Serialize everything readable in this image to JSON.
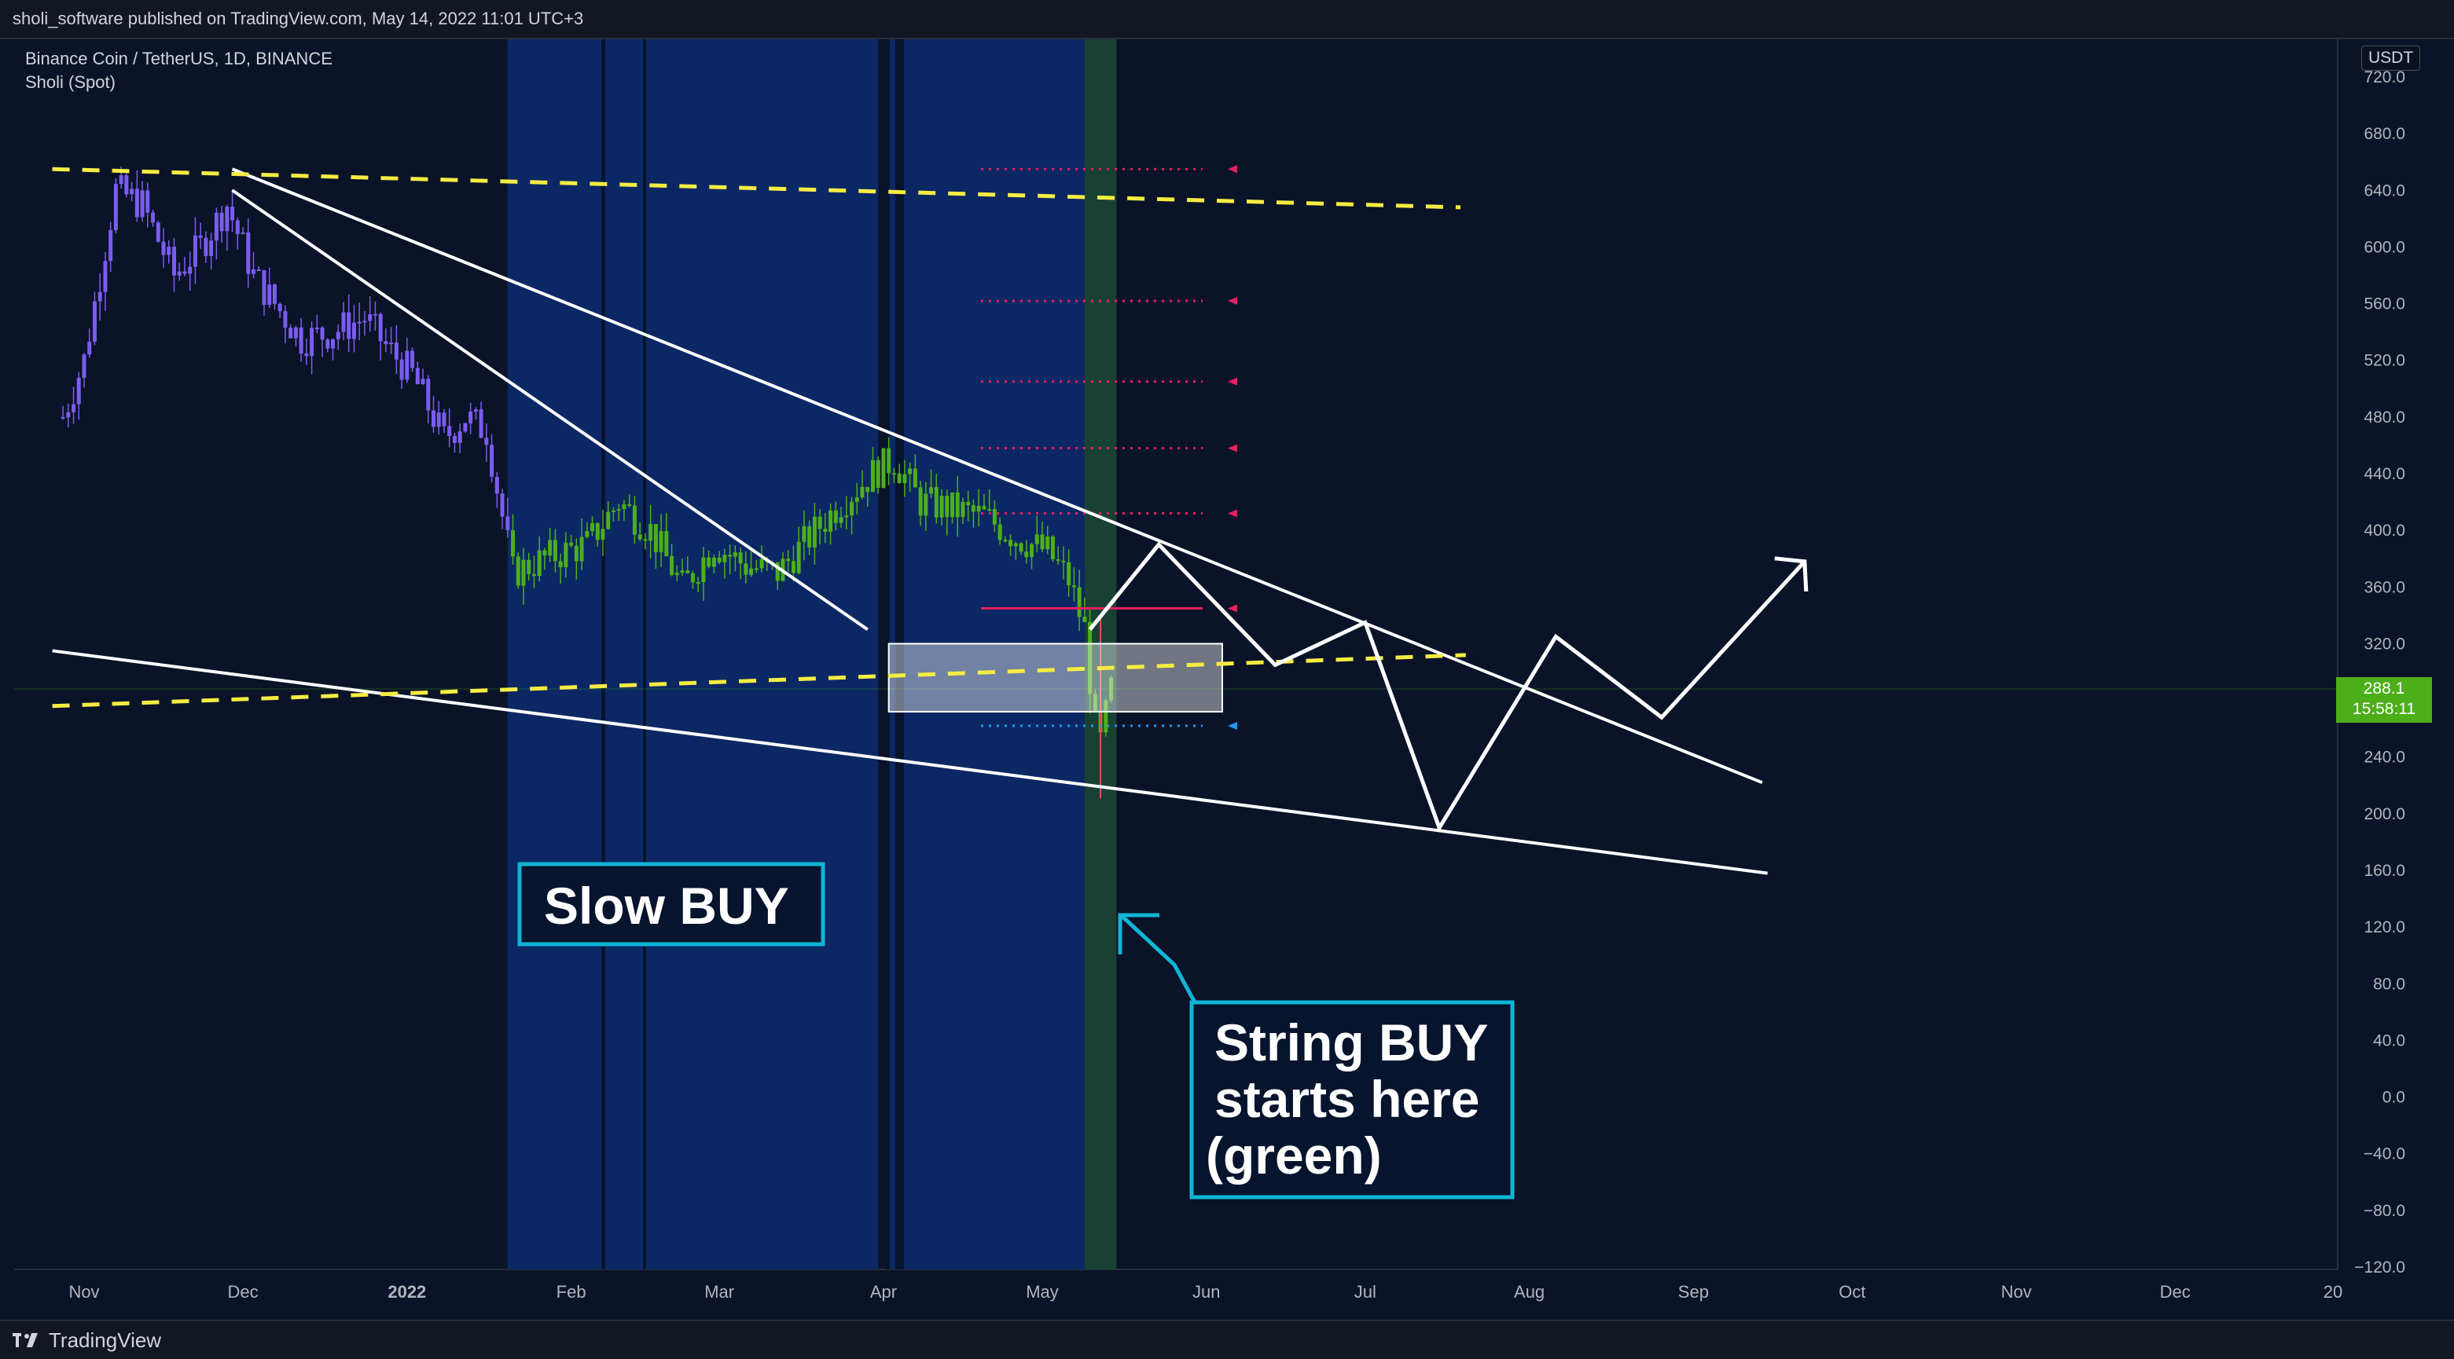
{
  "header": {
    "published_text": "sholi_software published on TradingView.com, May 14, 2022 11:01 UTC+3"
  },
  "footer": {
    "brand": "TradingView"
  },
  "legend": {
    "symbol": "Binance Coin / TetherUS, 1D, BINANCE",
    "indicator": "Sholi (Spot)"
  },
  "price_badge": {
    "price": "288.1",
    "countdown": "15:58:11"
  },
  "chart_data": {
    "type": "candlestick",
    "title": "Binance Coin / TetherUS, 1D, BINANCE",
    "currency": "USDT",
    "ylim": [
      -120,
      740
    ],
    "y_ticks": [
      "720.0",
      "680.0",
      "640.0",
      "600.0",
      "560.0",
      "520.0",
      "480.0",
      "440.0",
      "400.0",
      "360.0",
      "320.0",
      "280.0",
      "240.0",
      "200.0",
      "160.0",
      "120.0",
      "80.0",
      "40.0",
      "0.0",
      "−40.0",
      "−80.0",
      "−120.0"
    ],
    "x_ticks": [
      "Nov",
      "Dec",
      "2022",
      "Feb",
      "Mar",
      "Apr",
      "May",
      "Jun",
      "Jul",
      "Aug",
      "Sep",
      "Oct",
      "Nov",
      "Dec",
      "20"
    ],
    "last_price": 288.1,
    "price_path": [
      {
        "date": "2021-10-28",
        "close": 480
      },
      {
        "date": "2021-11-01",
        "close": 520
      },
      {
        "date": "2021-11-07",
        "close": 640
      },
      {
        "date": "2021-11-12",
        "close": 630
      },
      {
        "date": "2021-11-18",
        "close": 580
      },
      {
        "date": "2021-11-23",
        "close": 600
      },
      {
        "date": "2021-11-28",
        "close": 630
      },
      {
        "date": "2021-12-03",
        "close": 580
      },
      {
        "date": "2021-12-07",
        "close": 560
      },
      {
        "date": "2021-12-12",
        "close": 535
      },
      {
        "date": "2021-12-18",
        "close": 540
      },
      {
        "date": "2021-12-24",
        "close": 550
      },
      {
        "date": "2021-12-28",
        "close": 530
      },
      {
        "date": "2022-01-02",
        "close": 510
      },
      {
        "date": "2022-01-08",
        "close": 465
      },
      {
        "date": "2022-01-12",
        "close": 480
      },
      {
        "date": "2022-01-16",
        "close": 470
      },
      {
        "date": "2022-01-21",
        "close": 370
      },
      {
        "date": "2022-01-27",
        "close": 380
      },
      {
        "date": "2022-02-04",
        "close": 390
      },
      {
        "date": "2022-02-10",
        "close": 420
      },
      {
        "date": "2022-02-16",
        "close": 400
      },
      {
        "date": "2022-02-22",
        "close": 360
      },
      {
        "date": "2022-02-28",
        "close": 390
      },
      {
        "date": "2022-03-06",
        "close": 375
      },
      {
        "date": "2022-03-12",
        "close": 370
      },
      {
        "date": "2022-03-18",
        "close": 395
      },
      {
        "date": "2022-03-24",
        "close": 420
      },
      {
        "date": "2022-03-30",
        "close": 440
      },
      {
        "date": "2022-04-03",
        "close": 450
      },
      {
        "date": "2022-04-08",
        "close": 420
      },
      {
        "date": "2022-04-14",
        "close": 415
      },
      {
        "date": "2022-04-20",
        "close": 410
      },
      {
        "date": "2022-04-26",
        "close": 395
      },
      {
        "date": "2022-05-02",
        "close": 385
      },
      {
        "date": "2022-05-06",
        "close": 365
      },
      {
        "date": "2022-05-09",
        "close": 330
      },
      {
        "date": "2022-05-11",
        "close": 260
      },
      {
        "date": "2022-05-12",
        "close": 250
      },
      {
        "date": "2022-05-14",
        "close": 288.1
      }
    ],
    "bearish_color": "#7b5cf0",
    "bullish_color": "#4caf1a",
    "trendlines": [
      {
        "name": "upper-trendline",
        "points": [
          [
            "2021-11-29",
            655
          ],
          [
            "2022-09-14",
            222
          ]
        ],
        "color": "#ffffff"
      },
      {
        "name": "inner-trendline",
        "points": [
          [
            "2021-11-29",
            640
          ],
          [
            "2022-03-29",
            330
          ]
        ],
        "color": "#ffffff"
      },
      {
        "name": "lower-trendline",
        "points": [
          [
            "2021-10-26",
            315
          ],
          [
            "2022-09-15",
            158
          ]
        ],
        "color": "#ffffff"
      },
      {
        "name": "yellow-top",
        "points": [
          [
            "2021-10-26",
            655
          ],
          [
            "2022-07-19",
            628
          ]
        ],
        "color": "#f5ec42",
        "dash": true
      },
      {
        "name": "yellow-bottom",
        "points": [
          [
            "2021-10-26",
            276
          ],
          [
            "2022-07-20",
            312
          ]
        ],
        "color": "#f5ec42",
        "dash": true
      }
    ],
    "projection": [
      [
        "2022-05-10",
        330
      ],
      [
        "2022-05-23",
        390
      ],
      [
        "2022-06-14",
        305
      ],
      [
        "2022-07-01",
        335
      ],
      [
        "2022-07-15",
        190
      ],
      [
        "2022-08-06",
        325
      ],
      [
        "2022-08-26",
        268
      ],
      [
        "2022-09-22",
        378
      ]
    ],
    "levels": [
      {
        "price": 655,
        "color": "#e91e63",
        "style": "dotted"
      },
      {
        "price": 562,
        "color": "#e91e63",
        "style": "dotted"
      },
      {
        "price": 505,
        "color": "#e91e63",
        "style": "dotted"
      },
      {
        "price": 458,
        "color": "#e91e63",
        "style": "dotted"
      },
      {
        "price": 412,
        "color": "#e91e63",
        "style": "dotted"
      },
      {
        "price": 345,
        "color": "#e91e63",
        "style": "solid"
      },
      {
        "price": 262,
        "color": "#2196f3",
        "style": "dotted"
      }
    ],
    "zone": {
      "from": "2022-04-02",
      "to": "2022-06-04",
      "low": 272,
      "high": 320
    },
    "shaded_periods": [
      {
        "from": "2022-01-20",
        "to": "2022-03-31",
        "color": "#0d2d6e"
      },
      {
        "from": "2022-04-02",
        "to": "2022-05-09",
        "color": "#0d2d6e"
      },
      {
        "from": "2022-05-09",
        "to": "2022-05-15",
        "color": "#1b4a36"
      }
    ],
    "annotations": [
      {
        "name": "slow-buy",
        "text": "Slow BUY"
      },
      {
        "name": "strong-buy",
        "lines": [
          "String BUY",
          "starts here",
          "(green)"
        ]
      }
    ]
  }
}
